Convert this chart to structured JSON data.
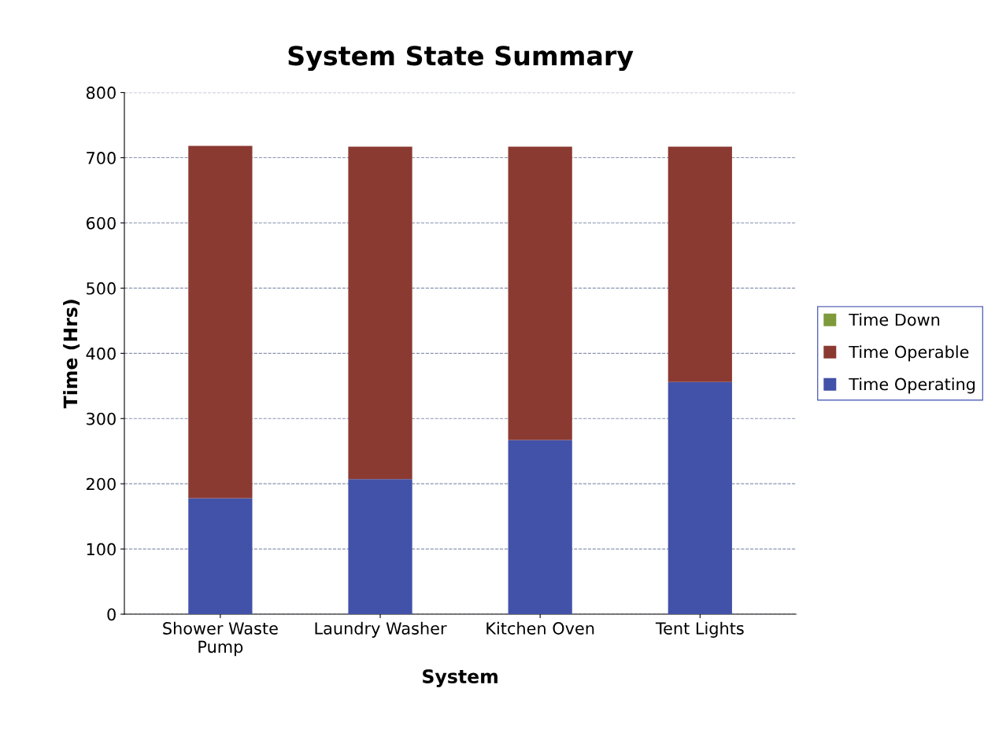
{
  "chart_data": {
    "type": "bar",
    "title": "System State Summary",
    "xlabel": "System",
    "ylabel": "Time (Hrs)",
    "categories": [
      "Shower Waste\nPump",
      "Laundry Washer",
      "Kitchen Oven",
      "Tent Lights"
    ],
    "stacked": true,
    "ylim": [
      0,
      800
    ],
    "yticks": [
      0,
      100,
      200,
      300,
      400,
      500,
      600,
      700,
      800
    ],
    "grid": "y",
    "legend": "right",
    "series": [
      {
        "name": "Time Operating",
        "color": "#4252a8",
        "values": [
          178,
          207,
          267,
          356
        ]
      },
      {
        "name": "Time Operable",
        "color": "#8b3a32",
        "values": [
          540,
          510,
          450,
          361
        ]
      },
      {
        "name": "Time Down",
        "color": "#7e9a3a",
        "values": [
          0,
          0,
          0,
          0
        ]
      }
    ]
  }
}
